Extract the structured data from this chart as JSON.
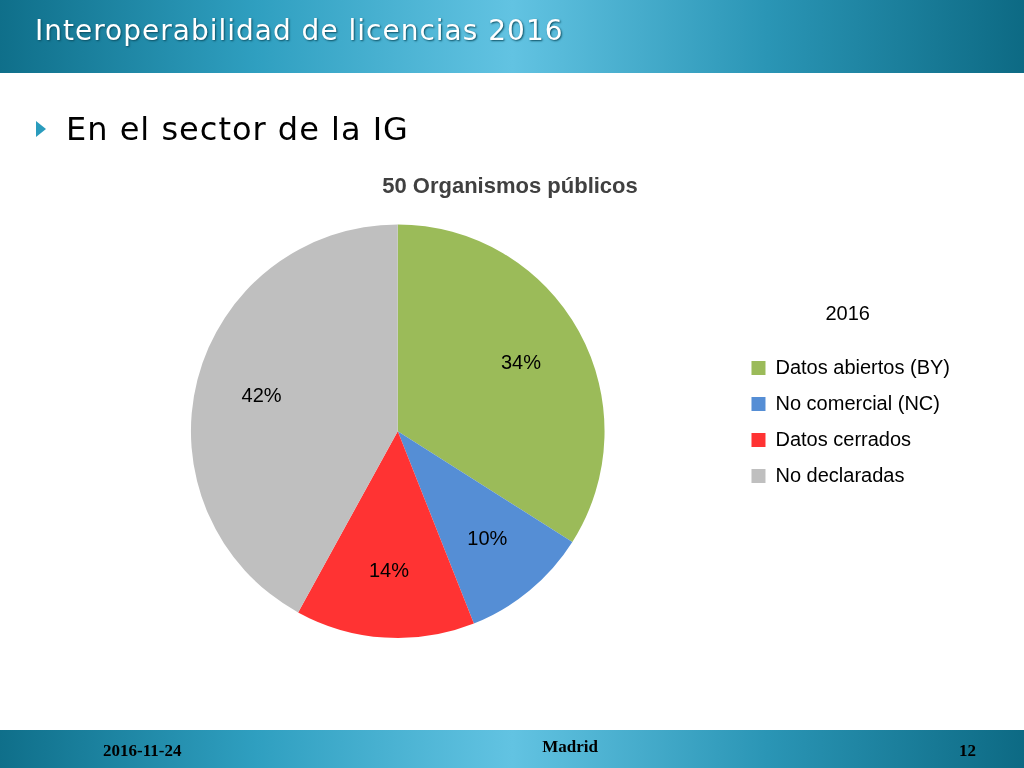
{
  "chart_data": {
    "type": "pie",
    "title": "50 Organismos públicos",
    "subtitle": "En el sector de la IG",
    "categories": [
      "Datos abiertos (BY)",
      "No comercial (NC)",
      "Datos cerrados",
      "No declaradas"
    ],
    "values": [
      34,
      10,
      14,
      42
    ],
    "value_labels": [
      "34%",
      "10%",
      "14%",
      "42%"
    ],
    "colors": [
      "#9bbb59",
      "#558ed5",
      "#ff3333",
      "#bfbfbf"
    ],
    "legend": "right",
    "legend_title": "2016",
    "annotations": [
      "Interoperabilidad de licencias 2016",
      "2016-11-24",
      "Madrid",
      "12"
    ]
  }
}
